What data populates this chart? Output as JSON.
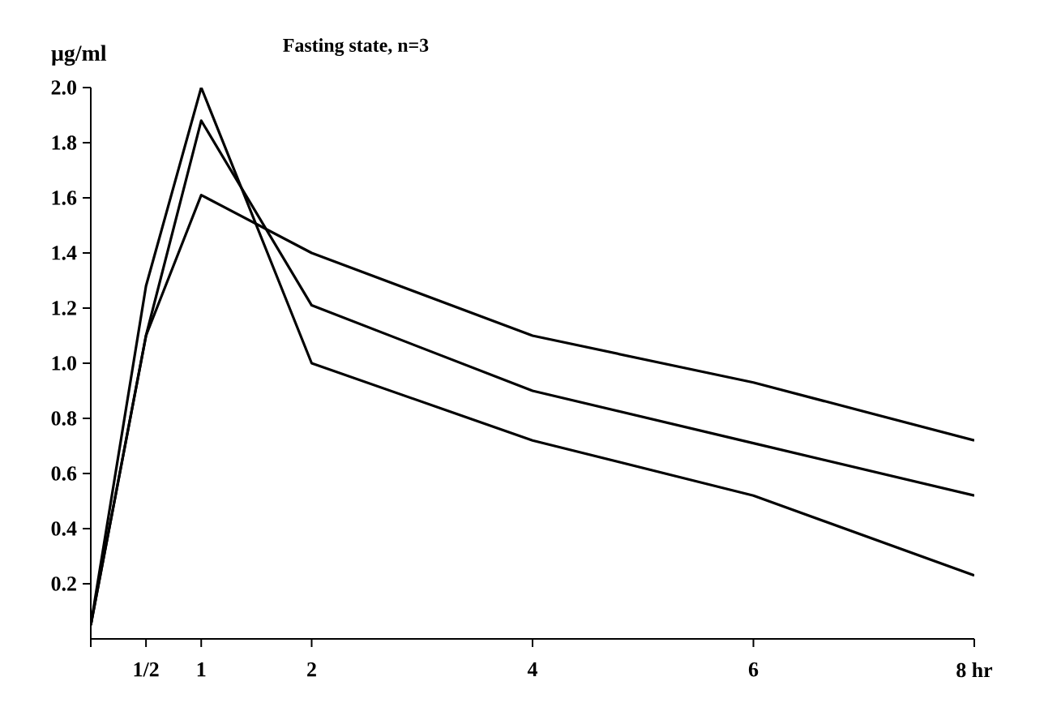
{
  "chart_data": {
    "type": "line",
    "title": "Fasting state, n=3",
    "ylabel": "μg/ml",
    "x": [
      0,
      0.5,
      1,
      2,
      4,
      6,
      8
    ],
    "series": [
      {
        "color": "#000000",
        "values": [
          0.05,
          1.28,
          2.0,
          1.0,
          0.72,
          0.52,
          0.23
        ]
      },
      {
        "color": "#000000",
        "values": [
          0.05,
          1.1,
          1.88,
          1.21,
          0.9,
          0.71,
          0.52
        ]
      },
      {
        "color": "#000000",
        "values": [
          0.05,
          1.1,
          1.61,
          1.4,
          1.1,
          0.93,
          0.72
        ]
      }
    ],
    "xlim": [
      0,
      8
    ],
    "ylim": [
      0,
      2.0
    ],
    "xticks": [
      {
        "value": 0,
        "label": null
      },
      {
        "value": 0.5,
        "label": "1/2"
      },
      1,
      2,
      4,
      6,
      {
        "value": 8,
        "label": "8 hr"
      }
    ],
    "yticks": [
      0.2,
      0.4,
      0.6,
      0.8,
      {
        "value": 1,
        "label": "1.0"
      },
      1.2,
      1.4,
      1.6,
      1.8,
      {
        "value": 2,
        "label": "2.0"
      }
    ],
    "grid": false,
    "legend": false,
    "marker": "none",
    "line_style": "solid"
  }
}
